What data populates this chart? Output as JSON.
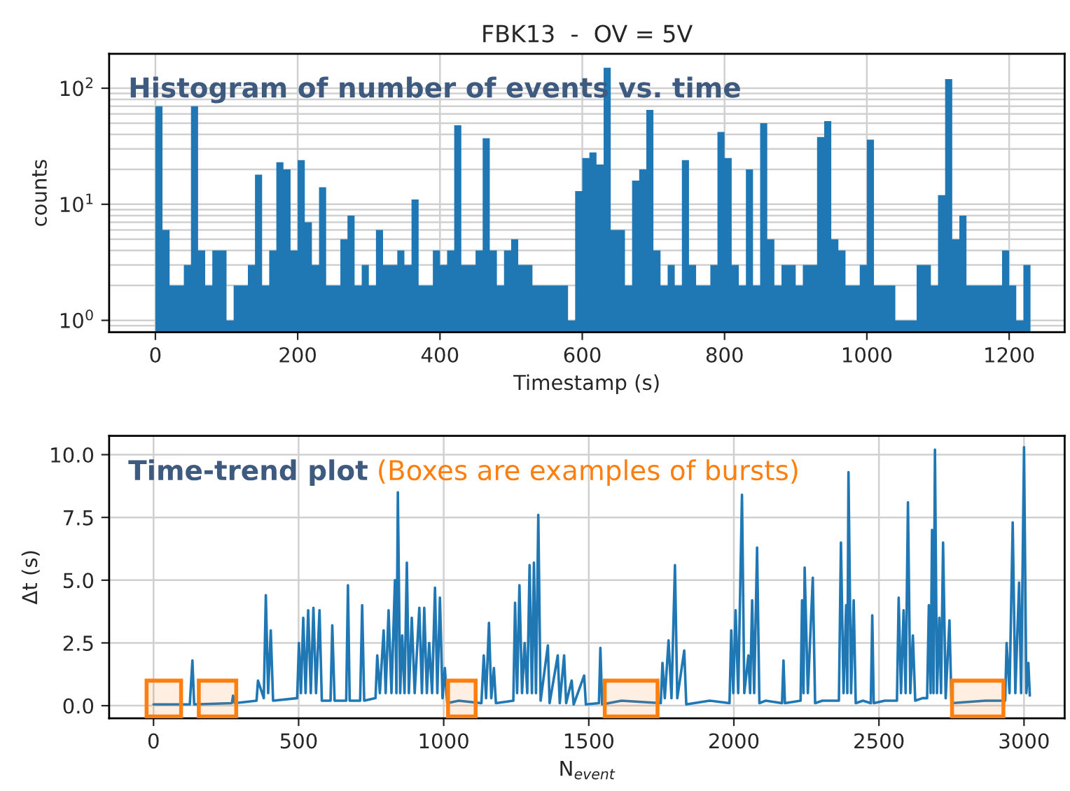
{
  "chart_data": [
    {
      "type": "histogram",
      "title": "FBK13  -  OV = 5V",
      "xlabel": "Timestamp (s)",
      "ylabel": "counts",
      "annotations": [
        "Histogram of number of events vs. time"
      ],
      "color": "#1f77b4",
      "log": "y",
      "grid": true,
      "xlim": [
        -65,
        1278
      ],
      "xticks": [
        0,
        200,
        400,
        600,
        800,
        1000,
        1200
      ],
      "ylim": [
        0.79,
        198
      ],
      "yticks": [
        {
          "value": 1,
          "label": "10$^{0}$"
        },
        {
          "value": 10,
          "label": "10$^{1}$"
        },
        {
          "value": 100,
          "label": "10$^{2}$"
        }
      ],
      "bins": [
        0,
        10,
        20,
        30,
        40,
        50,
        60,
        70,
        80,
        90,
        100,
        110,
        120,
        130,
        140,
        150,
        160,
        170,
        180,
        190,
        200,
        210,
        220,
        230,
        240,
        250,
        260,
        270,
        280,
        290,
        300,
        310,
        320,
        330,
        340,
        350,
        360,
        370,
        380,
        390,
        400,
        410,
        420,
        430,
        440,
        450,
        460,
        470,
        480,
        490,
        500,
        510,
        520,
        530,
        540,
        550,
        560,
        570,
        580,
        590,
        600,
        610,
        620,
        630,
        640,
        650,
        660,
        670,
        680,
        690,
        700,
        710,
        720,
        730,
        740,
        750,
        760,
        770,
        780,
        790,
        800,
        810,
        820,
        830,
        840,
        850,
        860,
        870,
        880,
        890,
        900,
        910,
        920,
        930,
        940,
        950,
        960,
        970,
        980,
        990,
        1000,
        1010,
        1020,
        1030,
        1040,
        1050,
        1060,
        1070,
        1080,
        1090,
        1100,
        1110,
        1120,
        1130,
        1140,
        1150,
        1160,
        1170,
        1180,
        1190,
        1200,
        1210,
        1220,
        1230
      ],
      "values": [
        70,
        6,
        2,
        2,
        3,
        70,
        4,
        2,
        4,
        4,
        1,
        2,
        2,
        3,
        18,
        2,
        4,
        23,
        20,
        4,
        24,
        7,
        3,
        14,
        2,
        2,
        5,
        8,
        2,
        3,
        2,
        6,
        3,
        3,
        4,
        3,
        11,
        2,
        2,
        4,
        3,
        4,
        48,
        3,
        3,
        4,
        37,
        4,
        2,
        4,
        5,
        3,
        3,
        2,
        2,
        2,
        2,
        2,
        1,
        13,
        25,
        28,
        22,
        150,
        6,
        6,
        2,
        16,
        20,
        65,
        4,
        2,
        3,
        2,
        24,
        3,
        2,
        2,
        3,
        42,
        25,
        3,
        2,
        20,
        2,
        50,
        5,
        2,
        3,
        3,
        2,
        3,
        3,
        38,
        52,
        5,
        4,
        2,
        2,
        3,
        36,
        2,
        2,
        2,
        1,
        1,
        1,
        3,
        3,
        2,
        12,
        120,
        5,
        8,
        2,
        2,
        2,
        2,
        2,
        4,
        2,
        1,
        3
      ]
    },
    {
      "type": "line",
      "xlabel": "N$_{event}$",
      "ylabel": "Δt (s)",
      "annotations": [
        "Time-trend plot",
        "(Boxes are examples of bursts)"
      ],
      "grid": true,
      "xlim": [
        -153,
        3140
      ],
      "xticks": [
        0,
        500,
        1000,
        1500,
        2000,
        2500,
        3000
      ],
      "ylim": [
        -0.5,
        10.75
      ],
      "yticks": [
        {
          "value": 0,
          "label": "0.0"
        },
        {
          "value": 2.5,
          "label": "2.5"
        },
        {
          "value": 5,
          "label": "5.0"
        },
        {
          "value": 7.5,
          "label": "7.5"
        },
        {
          "value": 10,
          "label": "10.0"
        }
      ],
      "bands": [
        {
          "axis": "x",
          "from": -24,
          "to": 95,
          "color": "#ff7f0e"
        },
        {
          "axis": "x",
          "from": 156,
          "to": 285,
          "color": "#ff7f0e"
        },
        {
          "axis": "x",
          "from": 1015,
          "to": 1110,
          "color": "#ff7f0e"
        },
        {
          "axis": "x",
          "from": 1555,
          "to": 1737,
          "color": "#ff7f0e"
        },
        {
          "axis": "x",
          "from": 2752,
          "to": 2929,
          "color": "#ff7f0e"
        }
      ],
      "series": [
        {
          "color": "#1f77b4",
          "x": [
            0,
            125,
            134,
            140,
            270,
            274,
            280,
            355,
            360,
            380,
            387,
            395,
            404,
            412,
            495,
            501,
            508,
            516,
            524,
            533,
            542,
            551,
            560,
            572,
            580,
            610,
            616,
            624,
            664,
            670,
            676,
            712,
            719,
            726,
            765,
            771,
            780,
            793,
            800,
            810,
            820,
            832,
            837,
            842,
            850,
            857,
            865,
            873,
            880,
            890,
            900,
            916,
            925,
            933,
            942,
            950,
            960,
            970,
            978,
            987,
            996,
            1004,
            1012,
            1052,
            1130,
            1138,
            1146,
            1156,
            1164,
            1173,
            1180,
            1240,
            1246,
            1253,
            1261,
            1270,
            1279,
            1288,
            1296,
            1304,
            1311,
            1318,
            1326,
            1334,
            1359,
            1365,
            1393,
            1400,
            1415,
            1422,
            1441,
            1448,
            1484,
            1490,
            1535,
            1540,
            1546,
            1613,
            1748,
            1754,
            1762,
            1775,
            1785,
            1797,
            1805,
            1829,
            1836,
            1916,
            1985,
            1991,
            1998,
            2006,
            2015,
            2028,
            2036,
            2050,
            2056,
            2063,
            2070,
            2080,
            2088,
            2110,
            2166,
            2171,
            2176,
            2230,
            2235,
            2240,
            2244,
            2255,
            2272,
            2280,
            2305,
            2362,
            2369,
            2378,
            2387,
            2391,
            2395,
            2404,
            2413,
            2420,
            2445,
            2472,
            2477,
            2482,
            2520,
            2562,
            2568,
            2576,
            2585,
            2592,
            2600,
            2608,
            2617,
            2625,
            2650,
            2666,
            2672,
            2678,
            2683,
            2688,
            2693,
            2700,
            2708,
            2714,
            2721,
            2730,
            2743,
            2750,
            2866,
            2935,
            2940,
            2950,
            2961,
            2970,
            2983,
            2990,
            3000,
            3008,
            3015,
            3020
          ],
          "values": [
            0.05,
            0.05,
            1.8,
            0.05,
            0.1,
            0.4,
            0.1,
            0.2,
            1.0,
            0.3,
            4.4,
            0.5,
            3.0,
            0.2,
            0.3,
            2.5,
            0.5,
            3.5,
            0.5,
            3.8,
            0.5,
            3.9,
            0.5,
            3.8,
            0.2,
            0.2,
            3.2,
            0.2,
            0.2,
            4.8,
            0.2,
            0.2,
            4.0,
            0.2,
            0.3,
            2.0,
            0.5,
            3.0,
            0.5,
            3.8,
            0.5,
            5.0,
            0.5,
            8.5,
            0.5,
            2.8,
            0.5,
            5.7,
            0.5,
            3.5,
            0.5,
            3.9,
            0.5,
            3.9,
            0.5,
            2.5,
            0.5,
            4.7,
            0.5,
            4.3,
            0.3,
            1.5,
            0.1,
            0.2,
            0.1,
            2.0,
            0.3,
            3.3,
            0.3,
            1.5,
            0.1,
            0.2,
            4.1,
            0.5,
            4.8,
            0.5,
            2.5,
            0.5,
            5.6,
            0.5,
            5.7,
            0.5,
            7.6,
            0.2,
            2.4,
            0.1,
            2.0,
            0.1,
            2.0,
            0.1,
            1.0,
            0.05,
            1.2,
            0.05,
            0.1,
            2.3,
            0.05,
            0.2,
            0.1,
            1.7,
            0.3,
            2.6,
            0.3,
            5.6,
            0.3,
            2.2,
            0.05,
            0.2,
            0.1,
            3.0,
            0.5,
            3.8,
            0.5,
            8.4,
            0.5,
            2.0,
            0.5,
            4.2,
            0.5,
            6.3,
            0.1,
            0.2,
            0.1,
            1.8,
            0.1,
            0.2,
            4.2,
            0.5,
            5.5,
            0.5,
            5.1,
            0.1,
            0.2,
            0.2,
            6.5,
            0.5,
            4.0,
            0.5,
            9.3,
            0.5,
            4.2,
            0.1,
            0.2,
            0.1,
            3.6,
            0.1,
            0.2,
            0.2,
            4.3,
            0.5,
            3.8,
            0.5,
            8.1,
            0.5,
            2.8,
            0.2,
            0.3,
            0.3,
            4.0,
            0.5,
            7.0,
            0.5,
            10.2,
            0.5,
            3.5,
            0.5,
            6.5,
            0.3,
            3.4,
            0.1,
            0.2,
            0.2,
            2.5,
            0.5,
            7.3,
            0.5,
            4.9,
            0.5,
            10.3,
            0.5,
            1.7,
            0.4
          ]
        }
      ]
    }
  ]
}
